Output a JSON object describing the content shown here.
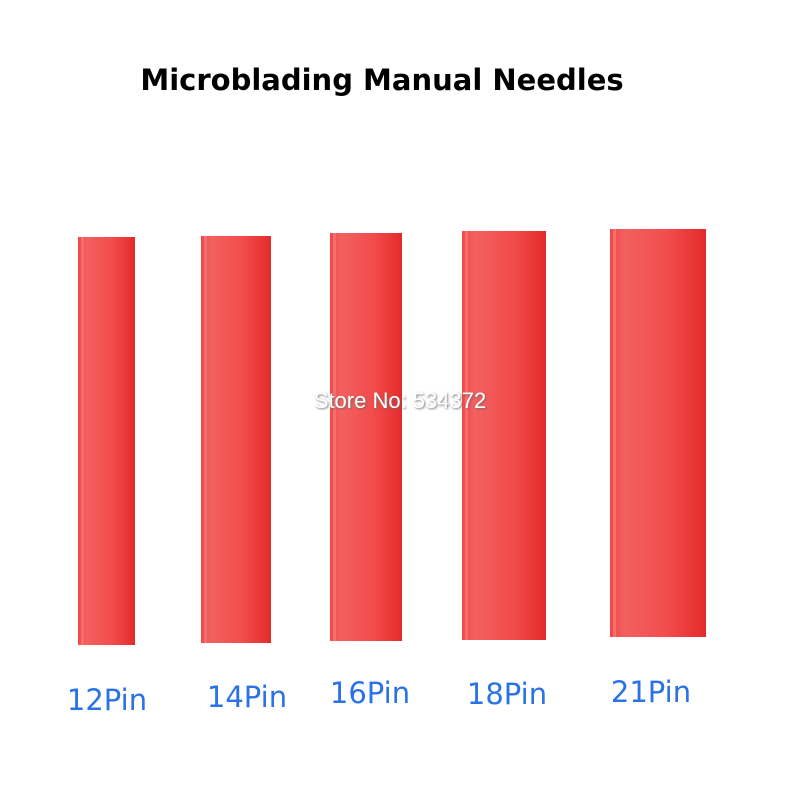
{
  "header": {
    "title": "Microblading Manual Needles"
  },
  "watermark": "Store No: 534372",
  "products": [
    {
      "label": "12Pin"
    },
    {
      "label": "14Pin"
    },
    {
      "label": "16Pin"
    },
    {
      "label": "18Pin"
    },
    {
      "label": "21Pin"
    }
  ]
}
